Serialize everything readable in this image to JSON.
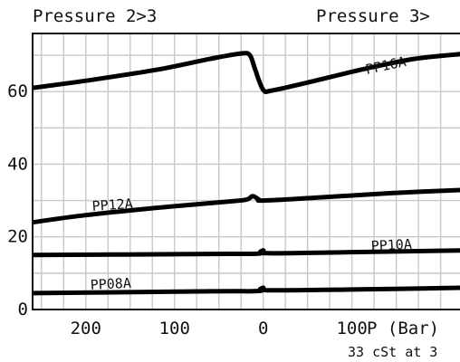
{
  "chart_data": {
    "type": "line",
    "header_left": "Pressure 2>3",
    "header_right": "Pressure 3>",
    "footnote": "33 cSt at 3",
    "xlabel": "P (Bar)",
    "x_tick_labels": [
      "200",
      "100",
      "0",
      "100"
    ],
    "y_tick_labels": [
      "0",
      "20",
      "40",
      "60"
    ],
    "xlim": [
      -260,
      230
    ],
    "ylim": [
      0,
      76
    ],
    "grid": true,
    "series": [
      {
        "name": "PP16A",
        "points": [
          [
            -260,
            61
          ],
          [
            -200,
            63
          ],
          [
            -120,
            66
          ],
          [
            -60,
            69
          ],
          [
            -25,
            70.5
          ],
          [
            -15,
            70
          ],
          [
            -9,
            66
          ],
          [
            0,
            60.5
          ],
          [
            10,
            60.3
          ],
          [
            50,
            62.5
          ],
          [
            110,
            66
          ],
          [
            170,
            69
          ],
          [
            230,
            70.5
          ]
        ]
      },
      {
        "name": "PP12A",
        "points": [
          [
            -260,
            24
          ],
          [
            -200,
            26
          ],
          [
            -120,
            28
          ],
          [
            -50,
            29.5
          ],
          [
            -20,
            30.2
          ],
          [
            -12,
            31.2
          ],
          [
            -5,
            30.3
          ],
          [
            0,
            30
          ],
          [
            60,
            30.8
          ],
          [
            140,
            32
          ],
          [
            230,
            33
          ]
        ]
      },
      {
        "name": "PP10A",
        "points": [
          [
            -260,
            15
          ],
          [
            -60,
            15.3
          ],
          [
            -5,
            15.4
          ],
          [
            0,
            16.3
          ],
          [
            5,
            15.5
          ],
          [
            100,
            15.8
          ],
          [
            230,
            16.3
          ]
        ]
      },
      {
        "name": "PP08A",
        "points": [
          [
            -260,
            4.5
          ],
          [
            -60,
            5
          ],
          [
            -5,
            5.1
          ],
          [
            0,
            6
          ],
          [
            5,
            5.3
          ],
          [
            100,
            5.5
          ],
          [
            230,
            6
          ]
        ]
      }
    ]
  }
}
